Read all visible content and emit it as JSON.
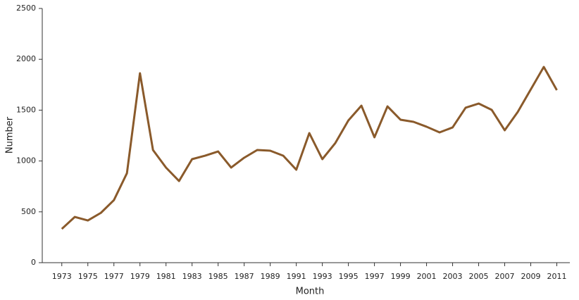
{
  "chart_data": {
    "type": "line",
    "x_label": "Month",
    "y_label": "Number",
    "x": [
      1973,
      1974,
      1975,
      1976,
      1977,
      1978,
      1979,
      1980,
      1981,
      1982,
      1983,
      1984,
      1985,
      1986,
      1987,
      1988,
      1989,
      1990,
      1991,
      1992,
      1993,
      1994,
      1995,
      1996,
      1997,
      1998,
      1999,
      2000,
      2001,
      2002,
      2003,
      2004,
      2005,
      2006,
      2007,
      2008,
      2009,
      2010,
      2011
    ],
    "series": [
      {
        "color": "#8a5a2b",
        "values": [
          332,
          450,
          415,
          490,
          615,
          880,
          1863,
          1108,
          935,
          803,
          1018,
          1052,
          1094,
          935,
          1032,
          1108,
          1101,
          1052,
          914,
          1274,
          1018,
          1177,
          1399,
          1544,
          1233,
          1537,
          1406,
          1385,
          1337,
          1281,
          1330,
          1524,
          1565,
          1503,
          1302,
          1482,
          1704,
          1925,
          1697
        ]
      }
    ],
    "xlim": [
      1971.5,
      2012
    ],
    "xticks": [
      1973,
      1975,
      1977,
      1979,
      1981,
      1983,
      1985,
      1987,
      1989,
      1991,
      1993,
      1995,
      1997,
      1999,
      2001,
      2003,
      2005,
      2007,
      2009,
      2011
    ],
    "ylim": [
      0,
      2500
    ],
    "yticks": [
      0,
      500,
      1000,
      1500,
      2000,
      2500
    ],
    "grid": false
  }
}
